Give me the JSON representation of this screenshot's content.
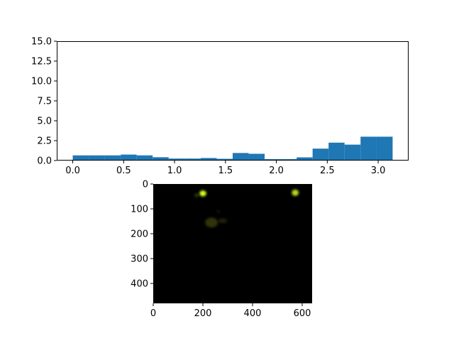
{
  "chart_data": [
    {
      "type": "bar",
      "title": "",
      "xlabel": "",
      "ylabel": "",
      "xlim": [
        -0.157,
        3.299
      ],
      "ylim": [
        0,
        15
      ],
      "grid": false,
      "bar_color": "#1f77b4",
      "bin_edges": [
        0.0,
        0.157,
        0.314,
        0.471,
        0.628,
        0.785,
        0.942,
        1.1,
        1.257,
        1.414,
        1.571,
        1.728,
        1.885,
        2.042,
        2.199,
        2.356,
        2.513,
        2.67,
        2.827,
        2.985,
        3.142
      ],
      "values": [
        0.65,
        0.65,
        0.65,
        0.75,
        0.65,
        0.42,
        0.25,
        0.25,
        0.32,
        0.22,
        0.95,
        0.85,
        0.18,
        0.18,
        0.4,
        1.5,
        2.25,
        2.0,
        3.0,
        3.0
      ],
      "x_ticks": [
        0.0,
        0.5,
        1.0,
        1.5,
        2.0,
        2.5,
        3.0
      ],
      "x_tick_labels": [
        "0.0",
        "0.5",
        "1.0",
        "1.5",
        "2.0",
        "2.5",
        "3.0"
      ],
      "y_ticks": [
        0.0,
        2.5,
        5.0,
        7.5,
        10.0,
        12.5,
        15.0
      ],
      "y_tick_labels": [
        "0.0",
        "2.5",
        "5.0",
        "7.5",
        "10.0",
        "12.5",
        "15.0"
      ]
    },
    {
      "type": "heatmap",
      "title": "",
      "xlabel": "",
      "ylabel": "",
      "image_width": 640,
      "image_height": 480,
      "background_color": "#000000",
      "x_ticks": [
        0,
        200,
        400,
        600
      ],
      "x_tick_labels": [
        "0",
        "200",
        "400",
        "600"
      ],
      "y_ticks": [
        0,
        100,
        200,
        300,
        400
      ],
      "y_tick_labels": [
        "0",
        "100",
        "200",
        "300",
        "400"
      ],
      "blobs": [
        {
          "x": 200,
          "y": 38,
          "rx": 14,
          "ry": 12,
          "color": "#d8ff1a",
          "opacity": 1.0
        },
        {
          "x": 175,
          "y": 45,
          "rx": 10,
          "ry": 8,
          "color": "#2a3a08",
          "opacity": 0.9
        },
        {
          "x": 572,
          "y": 35,
          "rx": 14,
          "ry": 13,
          "color": "#b8d81a",
          "opacity": 1.0
        },
        {
          "x": 235,
          "y": 155,
          "rx": 26,
          "ry": 20,
          "color": "#3a3a10",
          "opacity": 0.85
        },
        {
          "x": 280,
          "y": 148,
          "rx": 18,
          "ry": 10,
          "color": "#2a2a0c",
          "opacity": 0.75
        },
        {
          "x": 262,
          "y": 110,
          "rx": 6,
          "ry": 6,
          "color": "#222208",
          "opacity": 0.8
        }
      ]
    }
  ]
}
